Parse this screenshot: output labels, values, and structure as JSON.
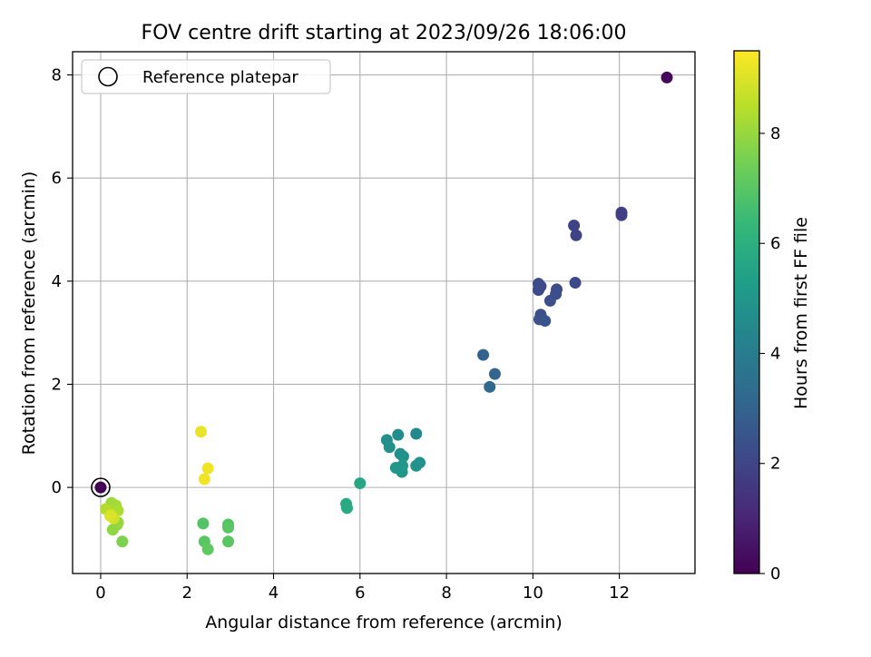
{
  "chart_data": {
    "type": "scatter",
    "title": "FOV centre drift starting at 2023/09/26 18:06:00",
    "xlabel": "Angular distance from reference (arcmin)",
    "ylabel": "Rotation from reference (arcmin)",
    "xlim": [
      -0.65,
      13.75
    ],
    "ylim": [
      -1.67,
      8.45
    ],
    "xticks": [
      0,
      2,
      4,
      6,
      8,
      10,
      12
    ],
    "yticks": [
      0,
      2,
      4,
      6,
      8
    ],
    "grid": true,
    "legend": {
      "position": "top-left",
      "entries": [
        "Reference platepar"
      ]
    },
    "colorbar": {
      "label": "Hours from first FF file",
      "colormap": "viridis",
      "range": [
        0,
        9.5
      ],
      "ticks": [
        0,
        2,
        4,
        6,
        8
      ]
    },
    "reference": {
      "x": 0,
      "y": 0,
      "label": "Reference platepar"
    },
    "points": [
      {
        "x": 0.0,
        "y": 0.0,
        "c": 0.0
      },
      {
        "x": 13.1,
        "y": 7.95,
        "c": 0.2
      },
      {
        "x": 12.05,
        "y": 5.33,
        "c": 1.8
      },
      {
        "x": 12.05,
        "y": 5.28,
        "c": 1.8
      },
      {
        "x": 10.95,
        "y": 5.08,
        "c": 1.9
      },
      {
        "x": 11.0,
        "y": 4.89,
        "c": 1.9
      },
      {
        "x": 10.98,
        "y": 3.97,
        "c": 2.1
      },
      {
        "x": 10.13,
        "y": 3.95,
        "c": 2.2
      },
      {
        "x": 10.18,
        "y": 3.9,
        "c": 2.2
      },
      {
        "x": 10.13,
        "y": 3.83,
        "c": 2.2
      },
      {
        "x": 10.55,
        "y": 3.84,
        "c": 2.2
      },
      {
        "x": 10.53,
        "y": 3.75,
        "c": 2.3
      },
      {
        "x": 10.4,
        "y": 3.62,
        "c": 2.3
      },
      {
        "x": 10.18,
        "y": 3.35,
        "c": 2.4
      },
      {
        "x": 10.15,
        "y": 3.26,
        "c": 2.4
      },
      {
        "x": 10.28,
        "y": 3.23,
        "c": 2.5
      },
      {
        "x": 8.85,
        "y": 2.57,
        "c": 3.0
      },
      {
        "x": 9.12,
        "y": 2.2,
        "c": 3.1
      },
      {
        "x": 9.0,
        "y": 1.95,
        "c": 3.2
      },
      {
        "x": 7.3,
        "y": 1.04,
        "c": 4.5
      },
      {
        "x": 6.88,
        "y": 1.02,
        "c": 4.6
      },
      {
        "x": 6.62,
        "y": 0.92,
        "c": 4.7
      },
      {
        "x": 6.68,
        "y": 0.78,
        "c": 4.8
      },
      {
        "x": 6.93,
        "y": 0.65,
        "c": 4.8
      },
      {
        "x": 7.0,
        "y": 0.6,
        "c": 4.8
      },
      {
        "x": 7.38,
        "y": 0.48,
        "c": 4.9
      },
      {
        "x": 7.3,
        "y": 0.42,
        "c": 4.9
      },
      {
        "x": 6.83,
        "y": 0.38,
        "c": 5.0
      },
      {
        "x": 6.98,
        "y": 0.42,
        "c": 5.0
      },
      {
        "x": 6.97,
        "y": 0.3,
        "c": 5.0
      },
      {
        "x": 6.0,
        "y": 0.08,
        "c": 5.6
      },
      {
        "x": 5.68,
        "y": -0.32,
        "c": 5.8
      },
      {
        "x": 5.7,
        "y": -0.4,
        "c": 5.8
      },
      {
        "x": 2.37,
        "y": -0.7,
        "c": 6.9
      },
      {
        "x": 2.95,
        "y": -0.72,
        "c": 6.9
      },
      {
        "x": 2.95,
        "y": -0.78,
        "c": 7.0
      },
      {
        "x": 2.4,
        "y": -1.05,
        "c": 7.0
      },
      {
        "x": 2.95,
        "y": -1.05,
        "c": 7.0
      },
      {
        "x": 2.48,
        "y": -1.2,
        "c": 7.1
      },
      {
        "x": 0.5,
        "y": -1.05,
        "c": 7.6
      },
      {
        "x": 0.38,
        "y": -0.72,
        "c": 7.8
      },
      {
        "x": 0.28,
        "y": -0.82,
        "c": 7.9
      },
      {
        "x": 0.4,
        "y": -0.68,
        "c": 8.0
      },
      {
        "x": 0.25,
        "y": -0.3,
        "c": 8.1
      },
      {
        "x": 0.35,
        "y": -0.35,
        "c": 8.2
      },
      {
        "x": 0.4,
        "y": -0.45,
        "c": 8.3
      },
      {
        "x": 0.12,
        "y": -0.42,
        "c": 8.4
      },
      {
        "x": 0.25,
        "y": -0.52,
        "c": 8.6
      },
      {
        "x": 0.3,
        "y": -0.6,
        "c": 8.8
      },
      {
        "x": 0.22,
        "y": -0.55,
        "c": 9.0
      },
      {
        "x": 2.32,
        "y": 1.08,
        "c": 9.2
      },
      {
        "x": 2.48,
        "y": 0.37,
        "c": 9.3
      },
      {
        "x": 2.4,
        "y": 0.16,
        "c": 9.3
      }
    ]
  }
}
